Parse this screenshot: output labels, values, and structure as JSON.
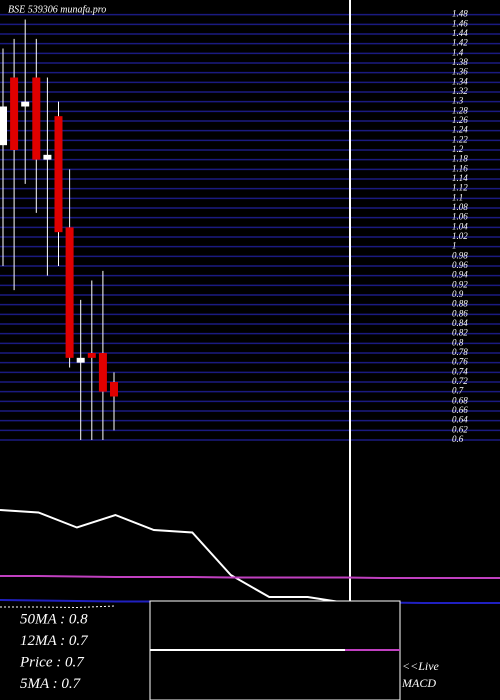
{
  "chart_data": [
    {
      "type": "candlestick",
      "title": "BSE 539306  munafa.pro",
      "open": [
        1.21,
        1.35,
        1.29,
        1.35,
        1.18,
        1.27,
        1.04,
        0.76,
        0.78,
        0.78,
        0.72
      ],
      "high": [
        1.41,
        1.43,
        1.47,
        1.43,
        1.35,
        1.3,
        1.16,
        0.89,
        0.93,
        0.95,
        0.74
      ],
      "low": [
        0.96,
        0.91,
        1.13,
        1.07,
        0.94,
        0.96,
        0.75,
        0.6,
        0.6,
        0.6,
        0.62
      ],
      "close": [
        1.29,
        1.2,
        1.3,
        1.18,
        1.19,
        1.03,
        0.77,
        0.77,
        0.77,
        0.7,
        0.69
      ],
      "up_color": "#ffffff",
      "down_color": "#e00000",
      "ylim": [
        0.6,
        1.5
      ],
      "yticks": [
        1.48,
        1.46,
        1.44,
        1.42,
        1.4,
        1.38,
        1.36,
        1.34,
        1.32,
        1.3,
        1.28,
        1.26,
        1.24,
        1.22,
        1.2,
        1.18,
        1.16,
        1.14,
        1.12,
        1.1,
        1.08,
        1.06,
        1.04,
        1.02,
        1,
        0.98,
        0.96,
        0.94,
        0.92,
        0.9,
        0.88,
        0.86,
        0.84,
        0.82,
        0.8,
        0.78,
        0.76,
        0.74,
        0.72,
        0.7,
        0.68,
        0.66,
        0.64,
        0.62,
        0.6
      ],
      "grid": true,
      "grid_color": "#1a1a80"
    },
    {
      "type": "line",
      "x": [
        0,
        1,
        2,
        3,
        4,
        5,
        6,
        7,
        8,
        9,
        10,
        11,
        12,
        13
      ],
      "xlim": [
        0,
        13
      ],
      "ylim": [
        0,
        100
      ],
      "series": [
        {
          "color": "#ffffff",
          "values": [
            76,
            75,
            69,
            74,
            68,
            67,
            50,
            41.2,
            41.2,
            38.8,
            null,
            null,
            null,
            null
          ]
        },
        {
          "color": "#c040c0",
          "values": [
            49.6,
            49.6,
            49.4,
            49.2,
            49.2,
            49.2,
            49,
            49,
            49,
            49,
            48.8,
            48.8,
            48.8,
            48.8
          ]
        },
        {
          "color": "#2020c0",
          "values": [
            40,
            39.8,
            39.6,
            39.4,
            39.4,
            39.2,
            39.2,
            39.2,
            39,
            39,
            39,
            38.8,
            38.8,
            38.8
          ]
        },
        {
          "color": "#ffffff",
          "dash": true,
          "values": [
            37.2,
            37.2,
            37,
            37.6,
            null,
            null,
            null,
            null,
            null,
            null,
            null,
            null,
            null,
            null
          ]
        }
      ],
      "annotations": [
        "50MA : 0.8",
        "12MA : 0.7",
        "Price  : 0.7",
        "5MA : 0.7"
      ],
      "live": "<<Live",
      "indicator": "MACD"
    }
  ]
}
